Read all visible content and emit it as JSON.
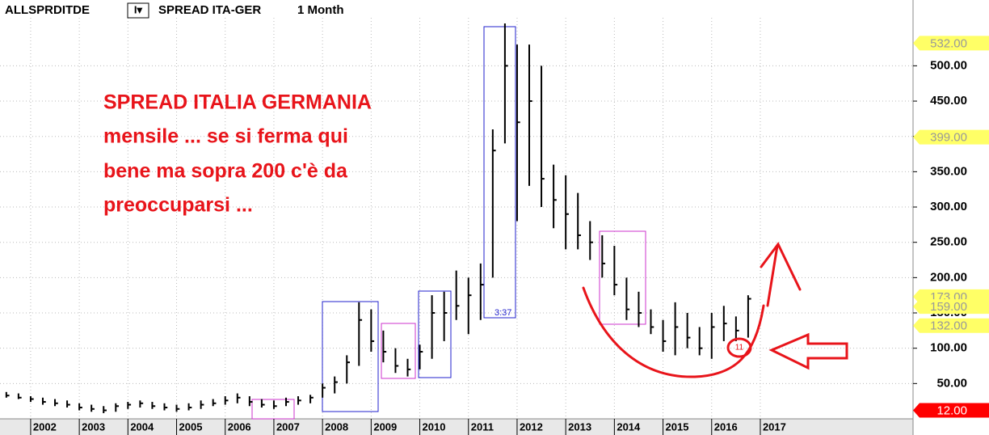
{
  "header": {
    "symbol": "ALLSPRDITDE",
    "menu": "I▾",
    "name": "SPREAD ITA-GER",
    "period": "1 Month"
  },
  "annotation": {
    "lines": [
      "SPREAD ITALIA GERMANIA",
      "mensile ... se si ferma qui",
      "bene ma sopra 200 c'è da",
      "preoccuparsi ..."
    ],
    "count_label": "3:37",
    "circled": "11"
  },
  "chart_data": {
    "type": "ohlc",
    "color": "#000000",
    "x": [
      2001.5,
      2001.75,
      2002,
      2002.25,
      2002.5,
      2002.75,
      2003,
      2003.25,
      2003.5,
      2003.75,
      2004,
      2004.25,
      2004.5,
      2004.75,
      2005,
      2005.25,
      2005.5,
      2005.75,
      2006,
      2006.25,
      2006.5,
      2006.75,
      2007,
      2007.25,
      2007.5,
      2007.75,
      2008,
      2008.25,
      2008.5,
      2008.75,
      2009,
      2009.25,
      2009.5,
      2009.75,
      2010,
      2010.25,
      2010.5,
      2010.75,
      2011,
      2011.25,
      2011.5,
      2011.75,
      2012,
      2012.25,
      2012.5,
      2012.75,
      2013,
      2013.25,
      2013.5,
      2013.75,
      2014,
      2014.25,
      2014.5,
      2014.75,
      2015,
      2015.25,
      2015.5,
      2015.75,
      2016,
      2016.25,
      2016.5,
      2016.75
    ],
    "low": [
      30,
      28,
      24,
      20,
      18,
      16,
      12,
      10,
      8,
      10,
      14,
      16,
      14,
      12,
      10,
      12,
      14,
      18,
      20,
      22,
      18,
      16,
      14,
      18,
      20,
      22,
      30,
      36,
      50,
      75,
      95,
      80,
      65,
      60,
      70,
      85,
      110,
      140,
      120,
      140,
      200,
      390,
      280,
      330,
      300,
      270,
      240,
      240,
      225,
      200,
      175,
      140,
      130,
      120,
      95,
      90,
      100,
      90,
      85,
      110,
      110,
      115
    ],
    "high": [
      38,
      36,
      32,
      30,
      28,
      26,
      22,
      20,
      18,
      22,
      24,
      26,
      24,
      22,
      20,
      22,
      26,
      28,
      32,
      36,
      32,
      28,
      26,
      30,
      32,
      34,
      50,
      60,
      90,
      165,
      155,
      125,
      100,
      85,
      105,
      175,
      180,
      210,
      200,
      220,
      410,
      560,
      530,
      530,
      500,
      360,
      345,
      320,
      280,
      260,
      245,
      200,
      180,
      155,
      140,
      165,
      150,
      130,
      150,
      160,
      145,
      175
    ],
    "close": [
      33,
      30,
      28,
      24,
      22,
      20,
      16,
      14,
      12,
      18,
      20,
      22,
      18,
      16,
      14,
      16,
      20,
      22,
      26,
      30,
      24,
      20,
      18,
      24,
      26,
      30,
      44,
      52,
      80,
      140,
      110,
      95,
      75,
      70,
      95,
      150,
      150,
      160,
      175,
      190,
      380,
      500,
      420,
      450,
      340,
      310,
      290,
      260,
      250,
      220,
      190,
      155,
      150,
      130,
      110,
      130,
      115,
      100,
      130,
      135,
      125,
      170
    ],
    "xlim": [
      2001.37,
      2020.14
    ],
    "xticks": [
      2002,
      2003,
      2004,
      2005,
      2006,
      2007,
      2008,
      2009,
      2010,
      2011,
      2012,
      2013,
      2014,
      2015,
      2016,
      2017
    ],
    "ylim": [
      0,
      568
    ],
    "yticks": [
      {
        "value": 50,
        "label": "50.00"
      },
      {
        "value": 100,
        "label": "100.00"
      },
      {
        "value": 150,
        "label": "150.00"
      },
      {
        "value": 200,
        "label": "200.00"
      },
      {
        "value": 250,
        "label": "250.00"
      },
      {
        "value": 300,
        "label": "300.00"
      },
      {
        "value": 350,
        "label": "350.00"
      },
      {
        "value": 400,
        "label": "400.00"
      },
      {
        "value": 450,
        "label": "450.00"
      },
      {
        "value": 500,
        "label": "500.00"
      }
    ],
    "grid": true,
    "price_labels": [
      {
        "value": 532,
        "label": "532.00",
        "color": "#ffff66"
      },
      {
        "value": 399,
        "label": "399.00",
        "color": "#ffff66"
      },
      {
        "value": 173,
        "label": "173.00",
        "color": "#ffff66"
      },
      {
        "value": 159,
        "label": "159.00",
        "color": "#ffff66"
      },
      {
        "value": 132,
        "label": "132.00",
        "color": "#ffff66"
      },
      {
        "value": 12,
        "label": "12.00",
        "color": "#ff0000"
      }
    ]
  }
}
